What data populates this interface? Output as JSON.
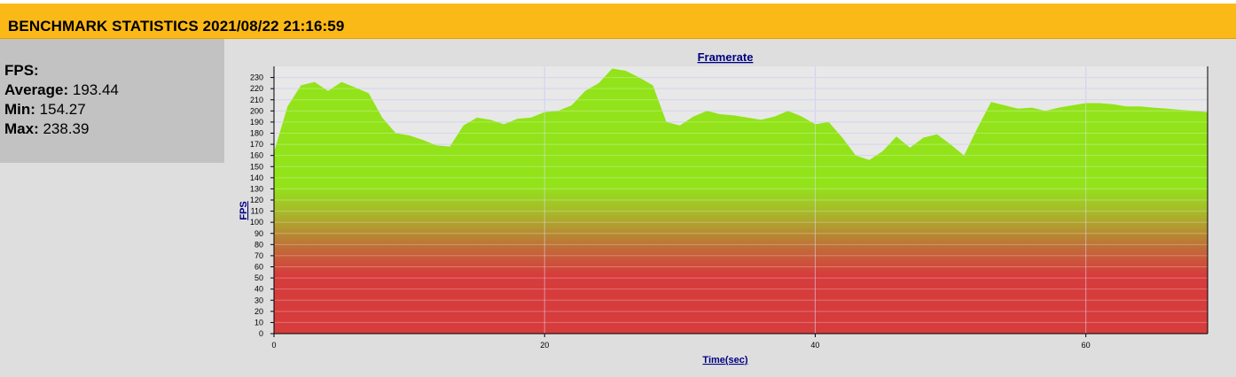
{
  "header": {
    "title": "BENCHMARK STATISTICS 2021/08/22 21:16:59"
  },
  "stats": {
    "heading": "FPS:",
    "average_label": "Average:",
    "average_value": "193.44",
    "min_label": "Min:",
    "min_value": "154.27",
    "max_label": "Max:",
    "max_value": "238.39"
  },
  "colors": {
    "header_bg": "#fbb917",
    "high_fps": "#92e31a",
    "low_fps": "#d63c3c",
    "axis_text": "#000080"
  },
  "chart_data": {
    "type": "area",
    "title": "Framerate",
    "xlabel": "Time(sec)",
    "ylabel": "FPS",
    "xlim": [
      0,
      69
    ],
    "ylim": [
      0,
      240
    ],
    "x_ticks": [
      0,
      20,
      40,
      60
    ],
    "y_ticks": [
      0,
      10,
      20,
      30,
      40,
      50,
      60,
      70,
      80,
      90,
      100,
      110,
      120,
      130,
      140,
      150,
      160,
      170,
      180,
      190,
      200,
      210,
      220,
      230
    ],
    "grid": true,
    "series": [
      {
        "x": [
          0,
          1,
          2,
          3,
          4,
          5,
          6,
          7,
          8,
          9,
          10,
          11,
          12,
          13,
          14,
          15,
          16,
          17,
          18,
          19,
          20,
          21,
          22,
          23,
          24,
          25,
          26,
          27,
          28,
          29,
          30,
          31,
          32,
          33,
          34,
          35,
          36,
          37,
          38,
          39,
          40,
          41,
          42,
          43,
          44,
          45,
          46,
          47,
          48,
          49,
          50,
          51,
          52,
          53,
          54,
          55,
          56,
          57,
          58,
          59,
          60,
          61,
          62,
          63,
          64,
          65,
          66,
          67,
          68,
          69
        ],
        "values": [
          163,
          204,
          223,
          226,
          218,
          226,
          221,
          216,
          194,
          180,
          178,
          174,
          169,
          168,
          187,
          194,
          192,
          188,
          193,
          194,
          199,
          200,
          205,
          218,
          225,
          238,
          236,
          230,
          223,
          190,
          187,
          195,
          200,
          197,
          196,
          194,
          192,
          195,
          200,
          195,
          188,
          190,
          176,
          160,
          156,
          164,
          177,
          167,
          176,
          179,
          170,
          160,
          185,
          208,
          205,
          202,
          203,
          200,
          203,
          205,
          207,
          207,
          206,
          204,
          204,
          203,
          202,
          201,
          200,
          199
        ]
      }
    ]
  }
}
